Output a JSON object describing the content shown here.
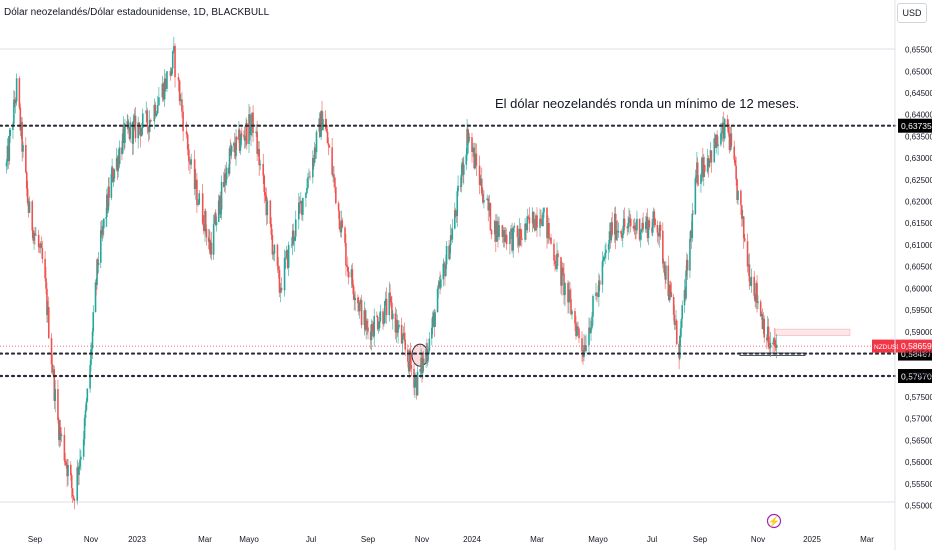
{
  "header": {
    "symbol_title": "Dólar neozelandés/Dólar estadounidense, 1D, BLACKBULL",
    "currency_button": "USD"
  },
  "annotation": {
    "text": "El dólar neozelandés ronda un mínimo de 12 meses."
  },
  "colors": {
    "up": "#26a69a",
    "down": "#ef5350",
    "level_line": "#2a2e39",
    "price_tag": "#f23645",
    "bg": "#ffffff",
    "axis_text": "#131722",
    "event_icon": "#9c27b0"
  },
  "chart_data": {
    "type": "candlestick",
    "x_tick_labels": [
      "Sep",
      "Nov",
      "2023",
      "Mar",
      "Mayo",
      "Jul",
      "Sep",
      "Nov",
      "2024",
      "Mar",
      "Mayo",
      "Jul",
      "Sep",
      "Nov",
      "2025",
      "Mar"
    ],
    "y_tick_labels": [
      "0,65500",
      "0,65000",
      "0,64500",
      "0,64000",
      "0,63500",
      "0,63000",
      "0,62500",
      "0,62000",
      "0,61500",
      "0,61000",
      "0,60500",
      "0,60000",
      "0,59500",
      "0,59000",
      "0,58500",
      "0,58000",
      "0,57500",
      "0,57000",
      "0,56500",
      "0,56000",
      "0,55500",
      "0,55000"
    ],
    "ylim": [
      0.5493,
      0.6564
    ],
    "close_path": [
      {
        "date": "2022-08-01",
        "close": 0.628
      },
      {
        "date": "2022-08-12",
        "close": 0.646
      },
      {
        "date": "2022-08-25",
        "close": 0.618
      },
      {
        "date": "2022-09-10",
        "close": 0.605
      },
      {
        "date": "2022-09-25",
        "close": 0.57
      },
      {
        "date": "2022-10-13",
        "close": 0.552
      },
      {
        "date": "2022-10-25",
        "close": 0.568
      },
      {
        "date": "2022-11-10",
        "close": 0.606
      },
      {
        "date": "2022-11-28",
        "close": 0.625
      },
      {
        "date": "2022-12-15",
        "close": 0.635
      },
      {
        "date": "2023-01-10",
        "close": 0.638
      },
      {
        "date": "2023-01-30",
        "close": 0.65
      },
      {
        "date": "2023-02-02",
        "close": 0.653
      },
      {
        "date": "2023-02-18",
        "close": 0.625
      },
      {
        "date": "2023-03-08",
        "close": 0.609
      },
      {
        "date": "2023-04-04",
        "close": 0.63
      },
      {
        "date": "2023-05-05",
        "close": 0.638
      },
      {
        "date": "2023-05-31",
        "close": 0.6
      },
      {
        "date": "2023-06-20",
        "close": 0.618
      },
      {
        "date": "2023-07-14",
        "close": 0.64
      },
      {
        "date": "2023-08-10",
        "close": 0.605
      },
      {
        "date": "2023-08-31",
        "close": 0.59
      },
      {
        "date": "2023-09-25",
        "close": 0.596
      },
      {
        "date": "2023-10-26",
        "close": 0.578
      },
      {
        "date": "2023-11-10",
        "close": 0.588
      },
      {
        "date": "2023-12-12",
        "close": 0.617
      },
      {
        "date": "2023-12-27",
        "close": 0.636
      },
      {
        "date": "2024-01-20",
        "close": 0.614
      },
      {
        "date": "2024-02-12",
        "close": 0.611
      },
      {
        "date": "2024-03-05",
        "close": 0.618
      },
      {
        "date": "2024-04-16",
        "close": 0.586
      },
      {
        "date": "2024-05-17",
        "close": 0.614
      },
      {
        "date": "2024-06-12",
        "close": 0.614
      },
      {
        "date": "2024-07-08",
        "close": 0.615
      },
      {
        "date": "2024-08-05",
        "close": 0.586
      },
      {
        "date": "2024-08-28",
        "close": 0.626
      },
      {
        "date": "2024-09-30",
        "close": 0.637
      },
      {
        "date": "2024-10-22",
        "close": 0.605
      },
      {
        "date": "2024-11-15",
        "close": 0.586
      },
      {
        "date": "2024-11-22",
        "close": 0.5865
      }
    ],
    "horizontal_levels": [
      {
        "price": 0.63735,
        "label": "0,63735",
        "style": "dotted"
      },
      {
        "price": 0.58487,
        "label": "0,58487",
        "style": "dotted"
      },
      {
        "price": 0.5797,
        "label": "0,57970",
        "style": "dotted"
      }
    ],
    "last_price": {
      "symbol": "NZDUSD",
      "price": 0.58659,
      "label": "0,58659"
    }
  }
}
